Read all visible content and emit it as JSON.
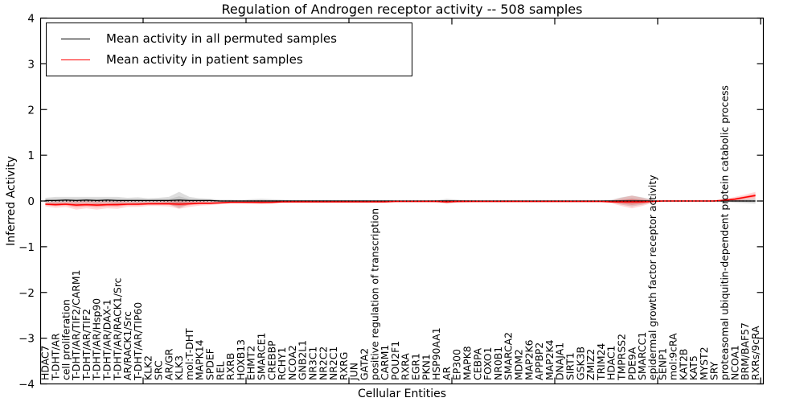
{
  "chart_data": {
    "type": "line",
    "title": "Regulation of Androgen receptor activity -- 508 samples",
    "xlabel": "Cellular Entities",
    "ylabel": "Inferred Activity",
    "ylim": [
      -4,
      4
    ],
    "yticks": [
      -4,
      -3,
      -2,
      -1,
      0,
      1,
      2,
      3,
      4
    ],
    "grid": false,
    "legend_position": "upper-left",
    "zero_line": {
      "style": "dotted",
      "color": "#000000",
      "y": 0
    },
    "categories": [
      "HDAC7",
      "T-DHT/AR",
      "cell proliferation",
      "T-DHT/AR/TIF2/CARM1",
      "T-DHT/AR/TIF2",
      "T-DHT/AR/Hsp90",
      "T-DHT/AR/DAX-1",
      "T-DHT/AR/RACK1/Src",
      "AR/RACK1/Src",
      "T-DHT/AR/TIP60",
      "KLK2",
      "SRC",
      "AR/GR",
      "KLK3",
      "mol:T-DHT",
      "MAPK14",
      "SPDEF",
      "REL",
      "RXRB",
      "HOXB13",
      "EHMT2",
      "SMARCE1",
      "CREBBP",
      "RCHY1",
      "NCOA2",
      "GNB2L1",
      "NR3C1",
      "NR2C2",
      "NR2C1",
      "RXRG",
      "JUN",
      "GATA2",
      "positive regulation of transcription",
      "CARM1",
      "POU2F1",
      "RXRA",
      "EGR1",
      "PKN1",
      "HSP90AA1",
      "AR",
      "EP300",
      "MAPK8",
      "CEBPA",
      "FOXO1",
      "NR0B1",
      "SMARCA2",
      "MDM2",
      "MAP2K6",
      "APPBP2",
      "MAP2K4",
      "DNAJA1",
      "SIRT1",
      "GSK3B",
      "ZMIZ2",
      "TRIM24",
      "HDAC1",
      "TMPRSS2",
      "PDE9A",
      "SMARCC1",
      "epidermal growth factor receptor activity",
      "SENP1",
      "mol:9cRA",
      "KAT2B",
      "KAT5",
      "MYST2",
      "SRY",
      "proteasomal ubiquitin-dependent protein catabolic process",
      "NCOA1",
      "BRM/BAF57",
      "RXRs/9cRA"
    ],
    "series": [
      {
        "name": "Mean activity in all permuted samples",
        "color": "#000000",
        "values": [
          0.01,
          0.01,
          0.02,
          0.01,
          0.02,
          0.01,
          0.02,
          0.01,
          0.01,
          0.01,
          0.01,
          0.01,
          0.01,
          0.02,
          0.01,
          0.01,
          0.01,
          0,
          0,
          0,
          0,
          0,
          0,
          0,
          0,
          0,
          0,
          0,
          0,
          0,
          0,
          0,
          0,
          0,
          0,
          0,
          0,
          0,
          0,
          0,
          0,
          0,
          0,
          0,
          0,
          0,
          0,
          0,
          0,
          0,
          0,
          0,
          0,
          0,
          0,
          0,
          0,
          0,
          0,
          0,
          0,
          0,
          0,
          0,
          0,
          0,
          0,
          0,
          0,
          0
        ],
        "band_halfwidth": [
          0.06,
          0.08,
          0.07,
          0.08,
          0.07,
          0.08,
          0.07,
          0.08,
          0.06,
          0.07,
          0.05,
          0.06,
          0.08,
          0.18,
          0.08,
          0.05,
          0.04,
          0.03,
          0.03,
          0.02,
          0.04,
          0.05,
          0.04,
          0.03,
          0.02,
          0.02,
          0.02,
          0.02,
          0.015,
          0.015,
          0.015,
          0.015,
          0.01,
          0.01,
          0.01,
          0.01,
          0.01,
          0.01,
          0.02,
          0.05,
          0.03,
          0.02,
          0.01,
          0.01,
          0.01,
          0.01,
          0.01,
          0.01,
          0.01,
          0.01,
          0.01,
          0.01,
          0.01,
          0.01,
          0.01,
          0.03,
          0.08,
          0.12,
          0.08,
          0.03,
          0.01,
          0.01,
          0.01,
          0.01,
          0.01,
          0.01,
          0.02,
          0.04,
          0.05,
          0.06
        ]
      },
      {
        "name": "Mean activity in patient samples",
        "color": "#ff0000",
        "values": [
          -0.07,
          -0.08,
          -0.07,
          -0.09,
          -0.08,
          -0.09,
          -0.08,
          -0.08,
          -0.07,
          -0.07,
          -0.06,
          -0.06,
          -0.06,
          -0.07,
          -0.06,
          -0.05,
          -0.05,
          -0.04,
          -0.03,
          -0.03,
          -0.03,
          -0.03,
          -0.03,
          -0.02,
          -0.02,
          -0.02,
          -0.02,
          -0.02,
          -0.02,
          -0.02,
          -0.02,
          -0.02,
          -0.02,
          -0.02,
          -0.01,
          -0.01,
          -0.01,
          -0.01,
          -0.01,
          -0.02,
          -0.01,
          -0.01,
          -0.01,
          -0.01,
          -0.01,
          -0.01,
          -0.01,
          -0.01,
          -0.01,
          -0.01,
          -0.01,
          -0.01,
          -0.01,
          -0.01,
          -0.01,
          -0.02,
          -0.02,
          -0.02,
          -0.02,
          -0.01,
          0,
          0,
          0,
          0,
          0,
          0,
          0.02,
          0.04,
          0.08,
          0.12
        ],
        "band_halfwidth": [
          0.05,
          0.07,
          0.06,
          0.1,
          0.08,
          0.1,
          0.08,
          0.09,
          0.06,
          0.06,
          0.05,
          0.05,
          0.06,
          0.1,
          0.07,
          0.05,
          0.04,
          0.03,
          0.02,
          0.02,
          0.03,
          0.04,
          0.03,
          0.02,
          0.015,
          0.015,
          0.015,
          0.015,
          0.01,
          0.01,
          0.01,
          0.01,
          0.01,
          0.01,
          0.01,
          0.01,
          0.01,
          0.01,
          0.02,
          0.04,
          0.03,
          0.02,
          0.01,
          0.01,
          0.01,
          0.01,
          0.01,
          0.01,
          0.01,
          0.01,
          0.01,
          0.01,
          0.01,
          0.01,
          0.01,
          0.03,
          0.09,
          0.14,
          0.09,
          0.03,
          0.01,
          0.01,
          0.01,
          0.01,
          0.01,
          0.01,
          0.02,
          0.05,
          0.06,
          0.08
        ]
      }
    ]
  }
}
